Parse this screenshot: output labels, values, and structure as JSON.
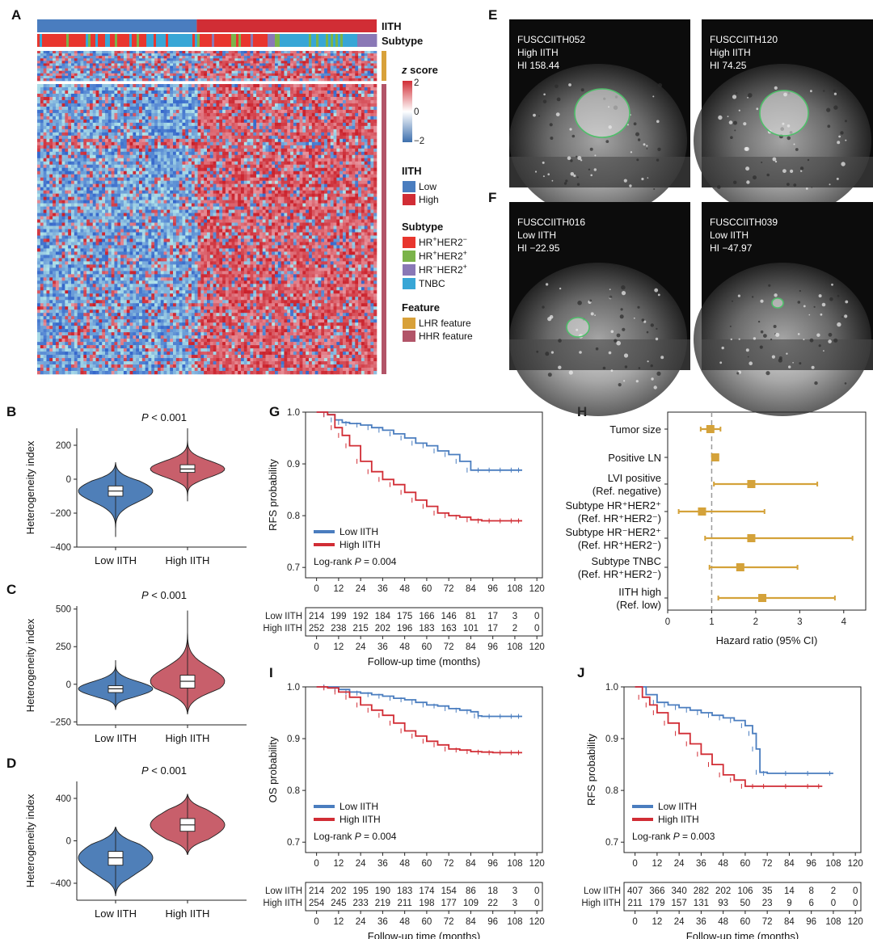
{
  "panel_labels": {
    "A": "A",
    "B": "B",
    "C": "C",
    "D": "D",
    "E": "E",
    "F": "F",
    "G": "G",
    "H": "H",
    "I": "I",
    "J": "J"
  },
  "colors": {
    "low": "#4a7dbf",
    "high": "#d12d35",
    "violin_low": "#4f7fb8",
    "violin_high": "#c85f6b",
    "hr_neg_her2_neg": "#e8362e",
    "hr_pos_her2_pos": "#7bb34a",
    "hr_neg_her2_pos": "#8a78b6",
    "tnbc": "#38a6d6",
    "lhr": "#d8a13a",
    "hhr": "#b25468",
    "forest": "#d4a23a"
  },
  "chart_data": [
    {
      "id": "A",
      "type": "heatmap",
      "annotation_labels": {
        "iith": "IITH",
        "subtype": "Subtype"
      },
      "legend": {
        "zscore_title_italic": "z",
        "zscore_title_rest": " score",
        "zscore_ticks": [
          "2",
          "0",
          "−2"
        ],
        "iith_title": "IITH",
        "iith_items": [
          "Low",
          "High"
        ],
        "subtype_title": "Subtype",
        "subtype_items": [
          {
            "a": "HR",
            "as": "+",
            "b": "HER2",
            "bs": "−"
          },
          {
            "a": "HR",
            "as": "+",
            "b": "HER2",
            "bs": "+"
          },
          {
            "a": "HR",
            "as": "−",
            "b": "HER2",
            "bs": "+"
          },
          {
            "a": "TNBC",
            "as": "",
            "b": "",
            "bs": ""
          }
        ],
        "feature_title": "Feature",
        "feature_items": [
          "LHR feature",
          "HHR feature"
        ]
      },
      "zlim": [
        -2,
        2
      ]
    },
    {
      "id": "E",
      "type": "image",
      "images": [
        {
          "id": "FUSCCIITH052",
          "group": "High IITH",
          "hi": "HI 158.44"
        },
        {
          "id": "FUSCCIITH120",
          "group": "High IITH",
          "hi": "HI 74.25"
        }
      ]
    },
    {
      "id": "F",
      "type": "image",
      "images": [
        {
          "id": "FUSCCIITH016",
          "group": "Low IITH",
          "hi": "HI −22.95"
        },
        {
          "id": "FUSCCIITH039",
          "group": "Low IITH",
          "hi": "HI −47.97"
        }
      ]
    },
    {
      "id": "B",
      "type": "violin",
      "ylabel": "Heterogeneity index",
      "categories": [
        "Low IITH",
        "High IITH"
      ],
      "p_italic": "P",
      "p_text": " < 0.001",
      "ylim": [
        -400,
        300
      ],
      "yticks": [
        -400,
        -200,
        0,
        200
      ],
      "series": [
        {
          "name": "Low IITH",
          "median": -70,
          "q1": -100,
          "q3": -40,
          "min": -340,
          "max": 100
        },
        {
          "name": "High IITH",
          "median": 60,
          "q1": 40,
          "q3": 85,
          "min": -130,
          "max": 300
        }
      ]
    },
    {
      "id": "C",
      "type": "violin",
      "ylabel": "Heterogeneity index",
      "categories": [
        "Low IITH",
        "High IITH"
      ],
      "p_italic": "P",
      "p_text": " < 0.001",
      "ylim": [
        -270,
        520
      ],
      "yticks": [
        -250,
        0,
        250,
        500
      ],
      "series": [
        {
          "name": "Low IITH",
          "median": -30,
          "q1": -55,
          "q3": -10,
          "min": -170,
          "max": 160
        },
        {
          "name": "High IITH",
          "median": 20,
          "q1": -25,
          "q3": 60,
          "min": -200,
          "max": 490
        }
      ]
    },
    {
      "id": "D",
      "type": "violin",
      "ylabel": "Heterogeneity index",
      "categories": [
        "Low IITH",
        "High IITH"
      ],
      "p_italic": "P",
      "p_text": " < 0.001",
      "ylim": [
        -560,
        560
      ],
      "yticks": [
        -400,
        0,
        400
      ],
      "series": [
        {
          "name": "Low IITH",
          "median": -160,
          "q1": -230,
          "q3": -100,
          "min": -520,
          "max": 130
        },
        {
          "name": "High IITH",
          "median": 150,
          "q1": 90,
          "q3": 210,
          "min": -130,
          "max": 440
        }
      ]
    },
    {
      "id": "G",
      "type": "line",
      "ylabel": "RFS probability",
      "xlabel": "Follow-up time (months)",
      "ylim": [
        0.68,
        1.0
      ],
      "yticks": [
        0.7,
        0.8,
        0.9,
        1.0
      ],
      "xlim": [
        -6,
        123
      ],
      "xticks": [
        0,
        12,
        24,
        36,
        48,
        60,
        72,
        84,
        96,
        108,
        120
      ],
      "logrank_text": "Log-rank ",
      "logrank_italic": "P",
      "logrank_val": " = 0.004",
      "series": [
        {
          "name": "Low IITH",
          "x": [
            0,
            6,
            10,
            14,
            18,
            24,
            30,
            36,
            42,
            48,
            54,
            60,
            66,
            72,
            78,
            84,
            90,
            96,
            102,
            108,
            112
          ],
          "y": [
            1.0,
            0.995,
            0.985,
            0.98,
            0.978,
            0.975,
            0.97,
            0.965,
            0.958,
            0.95,
            0.94,
            0.935,
            0.925,
            0.918,
            0.905,
            0.888,
            0.888,
            0.888,
            0.888,
            0.888,
            0.888
          ]
        },
        {
          "name": "High IITH",
          "x": [
            0,
            6,
            10,
            14,
            18,
            24,
            30,
            36,
            42,
            48,
            54,
            60,
            66,
            72,
            78,
            84,
            90,
            96,
            102,
            108,
            112
          ],
          "y": [
            1.0,
            0.995,
            0.97,
            0.955,
            0.935,
            0.905,
            0.885,
            0.87,
            0.86,
            0.845,
            0.83,
            0.818,
            0.805,
            0.8,
            0.797,
            0.792,
            0.79,
            0.79,
            0.79,
            0.79,
            0.79
          ]
        }
      ],
      "risk_table": {
        "low_label": "Low IITH",
        "high_label": "High IITH",
        "low": [
          "214",
          "199",
          "192",
          "184",
          "175",
          "166",
          "146",
          "81",
          "17",
          "3",
          "0"
        ],
        "high": [
          "252",
          "238",
          "215",
          "202",
          "196",
          "183",
          "163",
          "101",
          "17",
          "2",
          "0"
        ]
      }
    },
    {
      "id": "I",
      "type": "line",
      "ylabel": "OS probability",
      "xlabel": "Follow-up time (months)",
      "ylim": [
        0.68,
        1.0
      ],
      "yticks": [
        0.7,
        0.8,
        0.9,
        1.0
      ],
      "xlim": [
        -6,
        123
      ],
      "xticks": [
        0,
        12,
        24,
        36,
        48,
        60,
        72,
        84,
        96,
        108,
        120
      ],
      "logrank_text": "Log-rank ",
      "logrank_italic": "P",
      "logrank_val": " = 0.004",
      "series": [
        {
          "name": "Low IITH",
          "x": [
            0,
            6,
            12,
            18,
            24,
            30,
            36,
            42,
            48,
            54,
            60,
            66,
            72,
            78,
            84,
            88,
            90,
            96,
            102,
            108,
            112
          ],
          "y": [
            1.0,
            1.0,
            0.995,
            0.99,
            0.988,
            0.985,
            0.982,
            0.978,
            0.975,
            0.97,
            0.965,
            0.963,
            0.958,
            0.955,
            0.952,
            0.944,
            0.943,
            0.943,
            0.943,
            0.943,
            0.943
          ]
        },
        {
          "name": "High IITH",
          "x": [
            0,
            6,
            12,
            18,
            24,
            30,
            36,
            42,
            48,
            54,
            60,
            66,
            72,
            78,
            84,
            90,
            96,
            102,
            108,
            112
          ],
          "y": [
            1.0,
            0.998,
            0.99,
            0.98,
            0.965,
            0.955,
            0.945,
            0.93,
            0.915,
            0.905,
            0.895,
            0.888,
            0.88,
            0.878,
            0.875,
            0.874,
            0.873,
            0.873,
            0.873,
            0.873
          ]
        }
      ],
      "risk_table": {
        "low_label": "Low IITH",
        "high_label": "High IITH",
        "low": [
          "214",
          "202",
          "195",
          "190",
          "183",
          "174",
          "154",
          "86",
          "18",
          "3",
          "0"
        ],
        "high": [
          "254",
          "245",
          "233",
          "219",
          "211",
          "198",
          "177",
          "109",
          "22",
          "3",
          "0"
        ]
      }
    },
    {
      "id": "J",
      "type": "line",
      "ylabel": "RFS probability",
      "xlabel": "Follow-up time (months)",
      "ylim": [
        0.68,
        1.0
      ],
      "yticks": [
        0.7,
        0.8,
        0.9,
        1.0
      ],
      "xlim": [
        -6,
        123
      ],
      "xticks": [
        0,
        12,
        24,
        36,
        48,
        60,
        72,
        84,
        96,
        108,
        120
      ],
      "logrank_text": "Log-rank ",
      "logrank_italic": "P",
      "logrank_val": " = 0.003",
      "series": [
        {
          "name": "Low IITH",
          "x": [
            0,
            6,
            12,
            18,
            24,
            30,
            36,
            42,
            48,
            54,
            60,
            64,
            66,
            68,
            72,
            84,
            96,
            108
          ],
          "y": [
            1.0,
            0.985,
            0.97,
            0.965,
            0.96,
            0.955,
            0.95,
            0.945,
            0.94,
            0.935,
            0.925,
            0.91,
            0.88,
            0.835,
            0.833,
            0.833,
            0.833,
            0.833
          ]
        },
        {
          "name": "High IITH",
          "x": [
            0,
            4,
            8,
            12,
            18,
            24,
            30,
            36,
            42,
            48,
            54,
            60,
            66,
            72,
            84,
            96,
            102
          ],
          "y": [
            1.0,
            0.98,
            0.965,
            0.95,
            0.93,
            0.91,
            0.89,
            0.87,
            0.85,
            0.83,
            0.82,
            0.808,
            0.808,
            0.808,
            0.808,
            0.808,
            0.808
          ]
        }
      ],
      "risk_table": {
        "low_label": "Low IITH",
        "high_label": "High IITH",
        "low": [
          "407",
          "366",
          "340",
          "282",
          "202",
          "106",
          "35",
          "14",
          "8",
          "2",
          "0"
        ],
        "high": [
          "211",
          "179",
          "157",
          "131",
          "93",
          "50",
          "23",
          "9",
          "6",
          "0",
          "0"
        ]
      }
    },
    {
      "id": "H",
      "type": "forest",
      "xlabel": "Hazard ratio (95% CI)",
      "xlim": [
        0,
        4.5
      ],
      "xticks": [
        0,
        1,
        2,
        3,
        4
      ],
      "ref": 1,
      "rows": [
        {
          "l1": "Tumor size",
          "l2": null,
          "hr": 0.97,
          "lo": 0.75,
          "hi": 1.2
        },
        {
          "l1": "Positive LN",
          "l2": null,
          "hr": 1.08,
          "lo": 1.05,
          "hi": 1.12
        },
        {
          "l1": "LVI positive",
          "l2": "(Ref. negative)",
          "hr": 1.9,
          "lo": 1.05,
          "hi": 3.4
        },
        {
          "l1": "Subtype HR⁺HER2⁺",
          "l2": "(Ref. HR⁺HER2⁻)",
          "hr": 0.78,
          "lo": 0.25,
          "hi": 2.2
        },
        {
          "l1": "Subtype HR⁻HER2⁺",
          "l2": "(Ref. HR⁺HER2⁻)",
          "hr": 1.9,
          "lo": 0.85,
          "hi": 4.2
        },
        {
          "l1": "Subtype TNBC",
          "l2": "(Ref. HR⁺HER2⁻)",
          "hr": 1.65,
          "lo": 0.95,
          "hi": 2.95
        },
        {
          "l1": "IITH high",
          "l2": "(Ref. low)",
          "hr": 2.15,
          "lo": 1.15,
          "hi": 3.8
        }
      ]
    }
  ]
}
